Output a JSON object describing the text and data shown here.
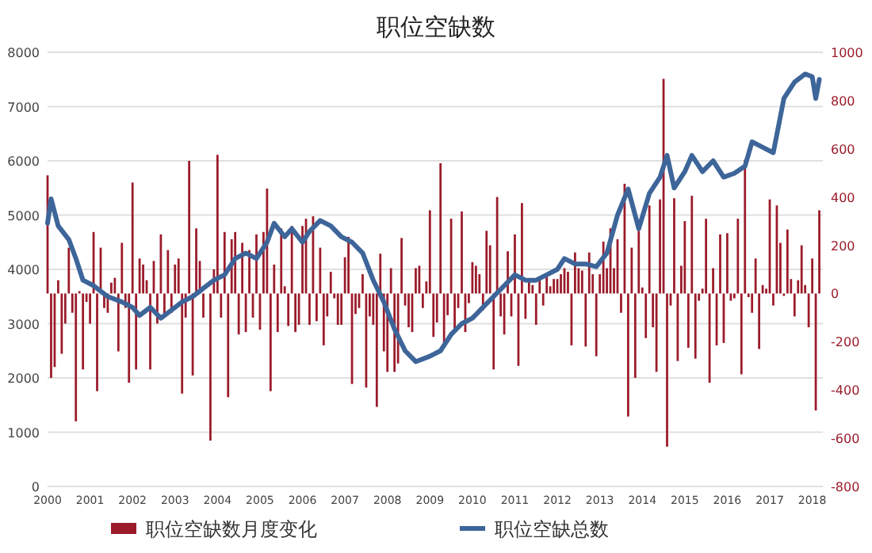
{
  "chart_data": {
    "type": "bar",
    "title": "职位空缺数",
    "xlim": [
      "2000-01",
      "2018-04"
    ],
    "xticks": [
      "2000",
      "2001",
      "2002",
      "2003",
      "2004",
      "2005",
      "2006",
      "2007",
      "2008",
      "2009",
      "2010",
      "2011",
      "2012",
      "2013",
      "2014",
      "2015",
      "2016",
      "2017",
      "2018"
    ],
    "ylim": [
      0,
      8000
    ],
    "yticks": [
      0,
      1000,
      2000,
      3000,
      4000,
      5000,
      6000,
      7000,
      8000
    ],
    "y2lim": [
      -800,
      1000
    ],
    "y2ticks": [
      -800,
      -600,
      -400,
      -200,
      0,
      200,
      400,
      600,
      800,
      1000
    ],
    "grid": "y",
    "legend": "bottom",
    "series": [
      {
        "name": "职位空缺数月度变化",
        "axis": "y2",
        "color": "#9b1b2a",
        "x": [
          "2000-01",
          "2000-02",
          "2000-03",
          "2000-04",
          "2000-05",
          "2000-06",
          "2000-07",
          "2000-08",
          "2000-09",
          "2000-10",
          "2000-11",
          "2000-12",
          "2001-01",
          "2001-02",
          "2001-03",
          "2001-04",
          "2001-05",
          "2001-06",
          "2001-07",
          "2001-08",
          "2001-09",
          "2001-10",
          "2001-11",
          "2001-12",
          "2002-01",
          "2002-02",
          "2002-03",
          "2002-04",
          "2002-05",
          "2002-06",
          "2002-07",
          "2002-08",
          "2002-09",
          "2002-10",
          "2002-11",
          "2002-12",
          "2003-01",
          "2003-02",
          "2003-03",
          "2003-04",
          "2003-05",
          "2003-06",
          "2003-07",
          "2003-08",
          "2003-09",
          "2003-10",
          "2003-11",
          "2003-12",
          "2004-01",
          "2004-02",
          "2004-03",
          "2004-04",
          "2004-05",
          "2004-06",
          "2004-07",
          "2004-08",
          "2004-09",
          "2004-10",
          "2004-11",
          "2004-12",
          "2005-01",
          "2005-02",
          "2005-03",
          "2005-04",
          "2005-05",
          "2005-06",
          "2005-07",
          "2005-08",
          "2005-09",
          "2005-10",
          "2005-11",
          "2005-12",
          "2006-01",
          "2006-02",
          "2006-03",
          "2006-04",
          "2006-05",
          "2006-06",
          "2006-07",
          "2006-08",
          "2006-09",
          "2006-10",
          "2006-11",
          "2006-12",
          "2007-01",
          "2007-02",
          "2007-03",
          "2007-04",
          "2007-05",
          "2007-06",
          "2007-07",
          "2007-08",
          "2007-09",
          "2007-10",
          "2007-11",
          "2007-12",
          "2008-01",
          "2008-02",
          "2008-03",
          "2008-04",
          "2008-05",
          "2008-06",
          "2008-07",
          "2008-08",
          "2008-09",
          "2008-10",
          "2008-11",
          "2008-12",
          "2009-01",
          "2009-02",
          "2009-03",
          "2009-04",
          "2009-05",
          "2009-06",
          "2009-07",
          "2009-08",
          "2009-09",
          "2009-10",
          "2009-11",
          "2009-12",
          "2010-01",
          "2010-02",
          "2010-03",
          "2010-04",
          "2010-05",
          "2010-06",
          "2010-07",
          "2010-08",
          "2010-09",
          "2010-10",
          "2010-11",
          "2010-12",
          "2011-01",
          "2011-02",
          "2011-03",
          "2011-04",
          "2011-05",
          "2011-06",
          "2011-07",
          "2011-08",
          "2011-09",
          "2011-10",
          "2011-11",
          "2011-12",
          "2012-01",
          "2012-02",
          "2012-03",
          "2012-04",
          "2012-05",
          "2012-06",
          "2012-07",
          "2012-08",
          "2012-09",
          "2012-10",
          "2012-11",
          "2012-12",
          "2013-01",
          "2013-02",
          "2013-03",
          "2013-04",
          "2013-05",
          "2013-06",
          "2013-07",
          "2013-08",
          "2013-09",
          "2013-10",
          "2013-11",
          "2013-12",
          "2014-01",
          "2014-02",
          "2014-03",
          "2014-04",
          "2014-05",
          "2014-06",
          "2014-07",
          "2014-08",
          "2014-09",
          "2014-10",
          "2014-11",
          "2014-12",
          "2015-01",
          "2015-02",
          "2015-03",
          "2015-04",
          "2015-05",
          "2015-06",
          "2015-07",
          "2015-08",
          "2015-09",
          "2015-10",
          "2015-11",
          "2015-12",
          "2016-01",
          "2016-02",
          "2016-03",
          "2016-04",
          "2016-05",
          "2016-06",
          "2016-07",
          "2016-08",
          "2016-09",
          "2016-10",
          "2016-11",
          "2016-12",
          "2017-01",
          "2017-02",
          "2017-03",
          "2017-04",
          "2017-05",
          "2017-06",
          "2017-07",
          "2017-08",
          "2017-09",
          "2017-10",
          "2017-11",
          "2017-12",
          "2018-01",
          "2018-02",
          "2018-03"
        ],
        "values": [
          490,
          -350,
          -305,
          55,
          -250,
          -125,
          190,
          -80,
          -530,
          10,
          -315,
          -35,
          -125,
          255,
          -405,
          190,
          -60,
          -80,
          45,
          65,
          -240,
          210,
          -60,
          -370,
          460,
          -315,
          145,
          120,
          55,
          -315,
          135,
          -125,
          245,
          -100,
          180,
          -80,
          120,
          145,
          -415,
          -100,
          550,
          -340,
          270,
          135,
          -100,
          null,
          -610,
          100,
          575,
          -100,
          255,
          -430,
          225,
          255,
          -170,
          210,
          -160,
          180,
          -100,
          245,
          -150,
          255,
          435,
          -405,
          120,
          -160,
          270,
          30,
          -135,
          280,
          -160,
          -130,
          280,
          310,
          -130,
          320,
          -115,
          190,
          -215,
          -95,
          90,
          -20,
          -130,
          -130,
          150,
          235,
          -375,
          -85,
          -60,
          80,
          -390,
          -95,
          -130,
          -470,
          165,
          -240,
          -325,
          105,
          -325,
          -290,
          230,
          -50,
          -140,
          -160,
          105,
          115,
          -60,
          50,
          345,
          -180,
          -120,
          540,
          -205,
          -90,
          310,
          -150,
          -60,
          340,
          -160,
          -40,
          130,
          115,
          80,
          -70,
          260,
          200,
          -315,
          400,
          -95,
          -170,
          175,
          -95,
          245,
          -300,
          375,
          -105,
          50,
          35,
          -130,
          60,
          -50,
          80,
          30,
          60,
          60,
          80,
          105,
          90,
          -215,
          170,
          105,
          95,
          -220,
          170,
          80,
          -260,
          80,
          215,
          105,
          270,
          105,
          225,
          -80,
          455,
          -510,
          190,
          -350,
          260,
          25,
          -185,
          365,
          -140,
          -325,
          390,
          890,
          -635,
          -50,
          395,
          -280,
          115,
          300,
          -225,
          405,
          -270,
          -30,
          20,
          310,
          -370,
          105,
          -215,
          245,
          -205,
          250,
          -30,
          -20,
          310,
          -335,
          555,
          -15,
          -80,
          145,
          -230,
          35,
          20,
          390,
          -50,
          365,
          210,
          -10,
          265,
          60,
          -95,
          55,
          200,
          35,
          -140,
          145,
          -485,
          345
        ]
      },
      {
        "name": "职位空缺总数",
        "type": "line",
        "axis": "y",
        "color": "#3d6599",
        "line_style": "solid",
        "marker": "none",
        "x": [
          "2000-01",
          "2000-02",
          "2000-04",
          "2000-07",
          "2000-09",
          "2000-11",
          "2001-02",
          "2001-06",
          "2001-10",
          "2002-01",
          "2002-03",
          "2002-06",
          "2002-09",
          "2002-11",
          "2003-03",
          "2003-06",
          "2003-09",
          "2003-12",
          "2004-03",
          "2004-06",
          "2004-09",
          "2004-12",
          "2005-03",
          "2005-05",
          "2005-08",
          "2005-10",
          "2006-01",
          "2006-03",
          "2006-06",
          "2006-09",
          "2006-12",
          "2007-03",
          "2007-06",
          "2007-09",
          "2007-12",
          "2008-03",
          "2008-06",
          "2008-09",
          "2009-01",
          "2009-04",
          "2009-07",
          "2009-10",
          "2010-01",
          "2010-04",
          "2010-07",
          "2010-10",
          "2011-01",
          "2011-04",
          "2011-07",
          "2011-10",
          "2012-01",
          "2012-03",
          "2012-06",
          "2012-09",
          "2012-12",
          "2013-03",
          "2013-06",
          "2013-09",
          "2013-12",
          "2014-03",
          "2014-06",
          "2014-08",
          "2014-10",
          "2015-01",
          "2015-03",
          "2015-06",
          "2015-09",
          "2015-12",
          "2016-03",
          "2016-06",
          "2016-08",
          "2016-11",
          "2017-02",
          "2017-05",
          "2017-08",
          "2017-11",
          "2018-01",
          "2018-02",
          "2018-03"
        ],
        "values": [
          4850,
          5300,
          4800,
          4550,
          4200,
          3800,
          3700,
          3500,
          3400,
          3300,
          3150,
          3300,
          3100,
          3200,
          3400,
          3500,
          3650,
          3800,
          3900,
          4200,
          4300,
          4200,
          4500,
          4850,
          4600,
          4750,
          4500,
          4700,
          4900,
          4800,
          4600,
          4500,
          4300,
          3800,
          3400,
          2900,
          2500,
          2300,
          2400,
          2500,
          2800,
          3000,
          3100,
          3300,
          3500,
          3700,
          3900,
          3800,
          3800,
          3900,
          4000,
          4200,
          4100,
          4100,
          4050,
          4300,
          5000,
          5480,
          4750,
          5400,
          5700,
          6100,
          5500,
          5800,
          6100,
          5800,
          6000,
          5700,
          5770,
          5900,
          6350,
          6250,
          6150,
          7150,
          7450,
          7600,
          7550,
          7150,
          7500
        ]
      }
    ]
  }
}
